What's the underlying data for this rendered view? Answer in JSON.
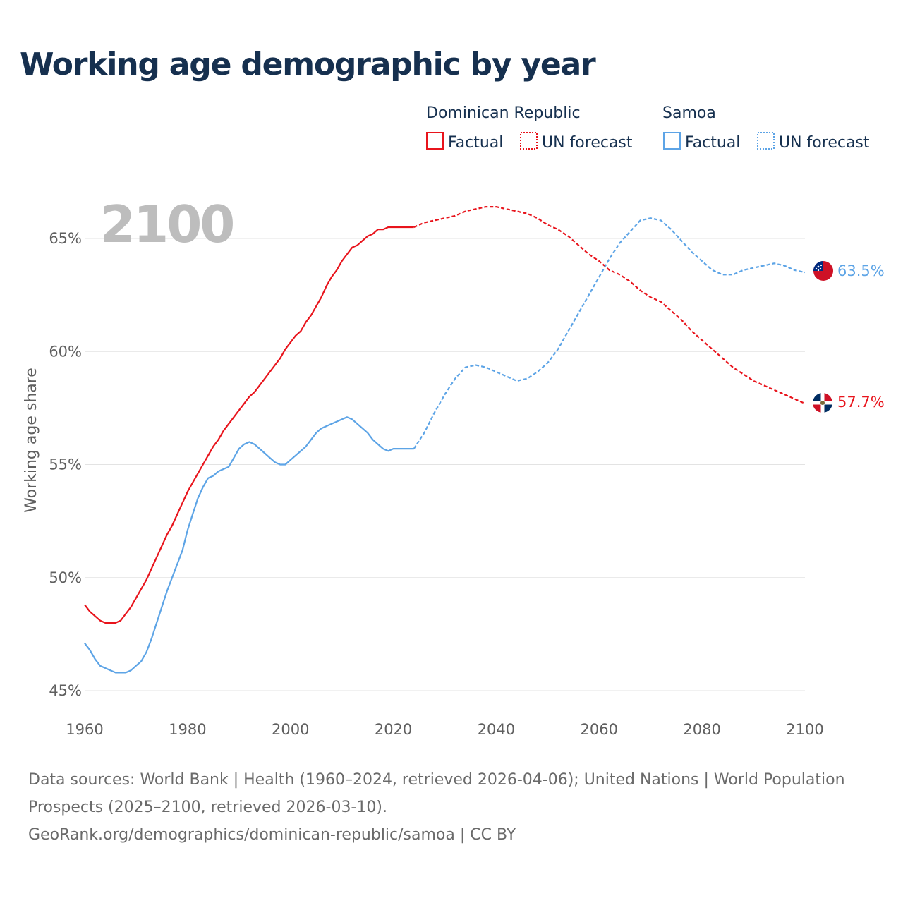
{
  "title": "Working age demographic by year",
  "footer": {
    "sources": "Data sources: World Bank | Health (1960–2024, retrieved 2026-04-06); United Nations | World Population Prospects (2025–2100, retrieved 2026-03-10).",
    "link": "GeoRank.org/demographics/dominican-republic/samoa | CC BY"
  },
  "chart_data": {
    "type": "line",
    "title": "Working age demographic by year",
    "ylabel": "Working age share",
    "xlabel": "",
    "year_label": "2100",
    "xlim": [
      1960,
      2100
    ],
    "ylim": [
      45,
      67
    ],
    "x_ticks": [
      1960,
      1980,
      2000,
      2020,
      2040,
      2060,
      2080,
      2100
    ],
    "y_ticks": [
      {
        "value": 45,
        "label": "45%"
      },
      {
        "value": 50,
        "label": "50%"
      },
      {
        "value": 55,
        "label": "55%"
      },
      {
        "value": 60,
        "label": "60%"
      },
      {
        "value": 65,
        "label": "65%"
      }
    ],
    "grid": true,
    "legend": {
      "position": "top-right",
      "groups": [
        {
          "name": "Dominican Republic",
          "color": "#e8141c",
          "factual": "Factual",
          "forecast": "UN forecast"
        },
        {
          "name": "Samoa",
          "color": "#5da4e6",
          "factual": "Factual",
          "forecast": "UN forecast"
        }
      ]
    },
    "series": [
      {
        "name": "Dominican Republic",
        "color": "#e8141c",
        "end_label": "57.7%",
        "factual": {
          "x": [
            1960,
            1961,
            1962,
            1963,
            1964,
            1965,
            1966,
            1967,
            1968,
            1969,
            1970,
            1971,
            1972,
            1973,
            1974,
            1975,
            1976,
            1977,
            1978,
            1979,
            1980,
            1981,
            1982,
            1983,
            1984,
            1985,
            1986,
            1987,
            1988,
            1989,
            1990,
            1991,
            1992,
            1993,
            1994,
            1995,
            1996,
            1997,
            1998,
            1999,
            2000,
            2001,
            2002,
            2003,
            2004,
            2005,
            2006,
            2007,
            2008,
            2009,
            2010,
            2011,
            2012,
            2013,
            2014,
            2015,
            2016,
            2017,
            2018,
            2019,
            2020,
            2021,
            2022,
            2023,
            2024
          ],
          "values": [
            48.8,
            48.5,
            48.3,
            48.1,
            48.0,
            48.0,
            48.0,
            48.1,
            48.4,
            48.7,
            49.1,
            49.5,
            49.9,
            50.4,
            50.9,
            51.4,
            51.9,
            52.3,
            52.8,
            53.3,
            53.8,
            54.2,
            54.6,
            55.0,
            55.4,
            55.8,
            56.1,
            56.5,
            56.8,
            57.1,
            57.4,
            57.7,
            58.0,
            58.2,
            58.5,
            58.8,
            59.1,
            59.4,
            59.7,
            60.1,
            60.4,
            60.7,
            60.9,
            61.3,
            61.6,
            62.0,
            62.4,
            62.9,
            63.3,
            63.6,
            64.0,
            64.3,
            64.6,
            64.7,
            64.9,
            65.1,
            65.2,
            65.4,
            65.4,
            65.5,
            65.5,
            65.5,
            65.5,
            65.5,
            65.5
          ]
        },
        "forecast": {
          "x": [
            2024,
            2026,
            2028,
            2030,
            2032,
            2034,
            2036,
            2038,
            2040,
            2042,
            2044,
            2046,
            2048,
            2050,
            2052,
            2054,
            2056,
            2058,
            2060,
            2062,
            2064,
            2066,
            2068,
            2070,
            2072,
            2074,
            2076,
            2078,
            2080,
            2082,
            2084,
            2086,
            2088,
            2090,
            2092,
            2094,
            2096,
            2098,
            2100
          ],
          "values": [
            65.5,
            65.7,
            65.8,
            65.9,
            66.0,
            66.2,
            66.3,
            66.4,
            66.4,
            66.3,
            66.2,
            66.1,
            65.9,
            65.6,
            65.4,
            65.1,
            64.7,
            64.3,
            64.0,
            63.6,
            63.4,
            63.1,
            62.7,
            62.4,
            62.2,
            61.8,
            61.4,
            60.9,
            60.5,
            60.1,
            59.7,
            59.3,
            59.0,
            58.7,
            58.5,
            58.3,
            58.1,
            57.9,
            57.7
          ]
        }
      },
      {
        "name": "Samoa",
        "color": "#5da4e6",
        "end_label": "63.5%",
        "factual": {
          "x": [
            1960,
            1961,
            1962,
            1963,
            1964,
            1965,
            1966,
            1967,
            1968,
            1969,
            1970,
            1971,
            1972,
            1973,
            1974,
            1975,
            1976,
            1977,
            1978,
            1979,
            1980,
            1981,
            1982,
            1983,
            1984,
            1985,
            1986,
            1987,
            1988,
            1989,
            1990,
            1991,
            1992,
            1993,
            1994,
            1995,
            1996,
            1997,
            1998,
            1999,
            2000,
            2001,
            2002,
            2003,
            2004,
            2005,
            2006,
            2007,
            2008,
            2009,
            2010,
            2011,
            2012,
            2013,
            2014,
            2015,
            2016,
            2017,
            2018,
            2019,
            2020,
            2021,
            2022,
            2023,
            2024
          ],
          "values": [
            47.1,
            46.8,
            46.4,
            46.1,
            46.0,
            45.9,
            45.8,
            45.8,
            45.8,
            45.9,
            46.1,
            46.3,
            46.7,
            47.3,
            48.0,
            48.7,
            49.4,
            50.0,
            50.6,
            51.2,
            52.1,
            52.8,
            53.5,
            54.0,
            54.4,
            54.5,
            54.7,
            54.8,
            54.9,
            55.3,
            55.7,
            55.9,
            56.0,
            55.9,
            55.7,
            55.5,
            55.3,
            55.1,
            55.0,
            55.0,
            55.2,
            55.4,
            55.6,
            55.8,
            56.1,
            56.4,
            56.6,
            56.7,
            56.8,
            56.9,
            57.0,
            57.1,
            57.0,
            56.8,
            56.6,
            56.4,
            56.1,
            55.9,
            55.7,
            55.6,
            55.7,
            55.7,
            55.7,
            55.7,
            55.7
          ]
        },
        "forecast": {
          "x": [
            2024,
            2026,
            2028,
            2030,
            2032,
            2034,
            2036,
            2038,
            2040,
            2042,
            2044,
            2046,
            2048,
            2050,
            2052,
            2054,
            2056,
            2058,
            2060,
            2062,
            2064,
            2066,
            2068,
            2070,
            2072,
            2074,
            2076,
            2078,
            2080,
            2082,
            2084,
            2086,
            2088,
            2090,
            2092,
            2094,
            2096,
            2098,
            2100
          ],
          "values": [
            55.7,
            56.4,
            57.3,
            58.1,
            58.8,
            59.3,
            59.4,
            59.3,
            59.1,
            58.9,
            58.7,
            58.8,
            59.1,
            59.5,
            60.1,
            60.9,
            61.7,
            62.5,
            63.3,
            64.1,
            64.8,
            65.3,
            65.8,
            65.9,
            65.8,
            65.4,
            64.9,
            64.4,
            64.0,
            63.6,
            63.4,
            63.4,
            63.6,
            63.7,
            63.8,
            63.9,
            63.8,
            63.6,
            63.5
          ]
        }
      }
    ]
  }
}
